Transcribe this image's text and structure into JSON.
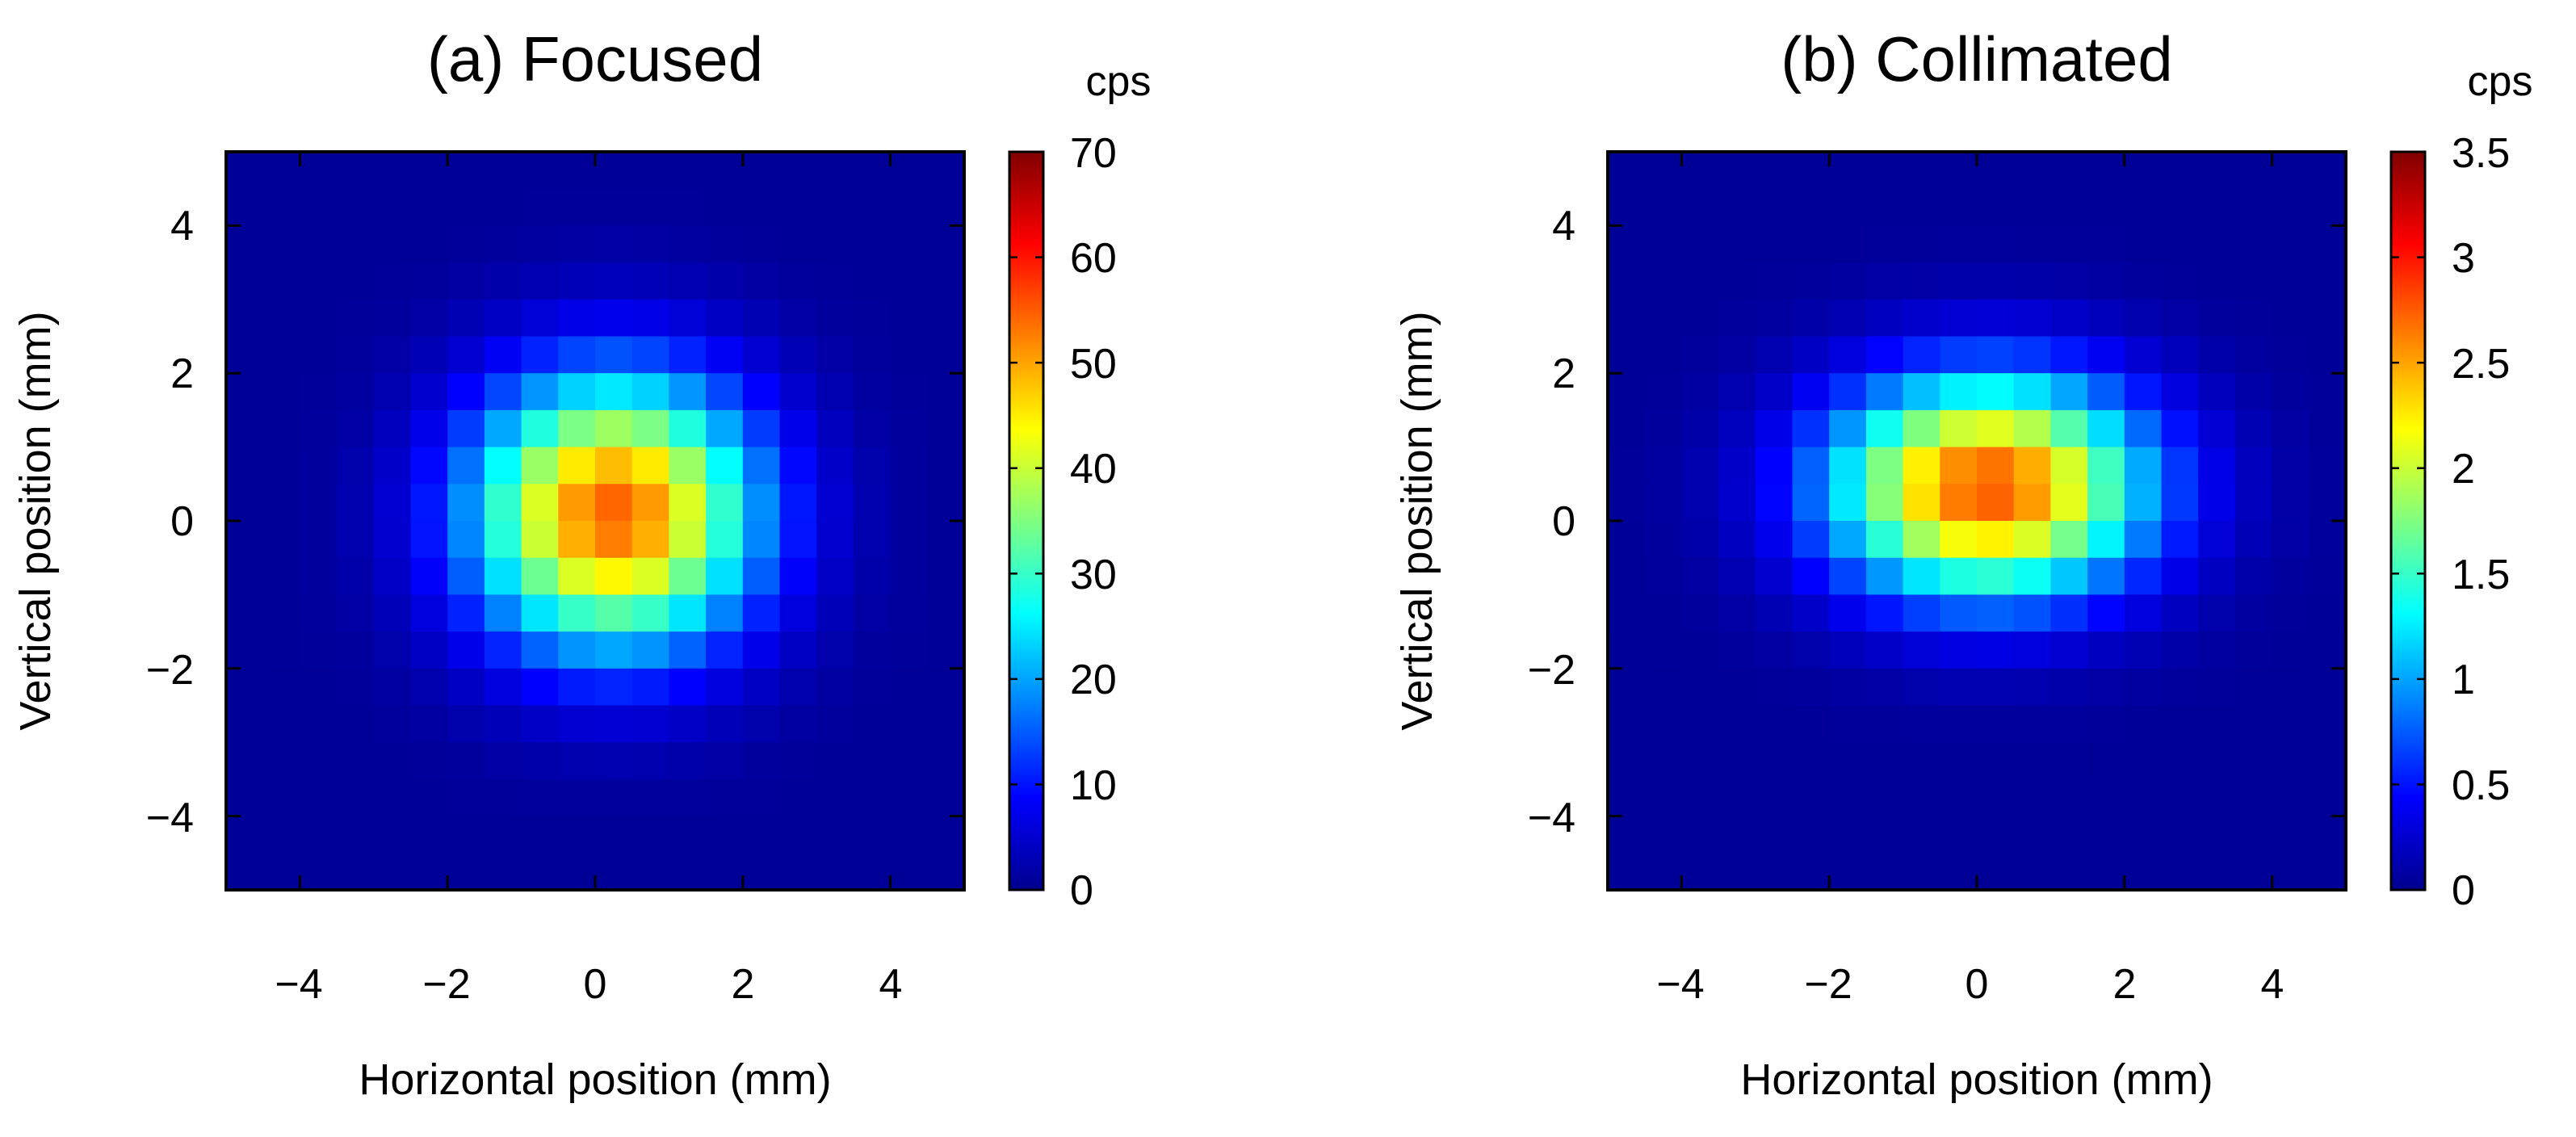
{
  "chart_data": [
    {
      "type": "heatmap",
      "title": "(a) Focused",
      "xlabel": "Horizontal position (mm)",
      "ylabel": "Vertical position (mm)",
      "xlim": [
        -5,
        5
      ],
      "ylim": [
        -5,
        5
      ],
      "grid": false,
      "bins": 20,
      "cell_size_mm": 0.5,
      "center_mm": [
        0.25,
        0.1
      ],
      "sigma_mm": [
        1.35,
        1.3
      ],
      "peak_value": 54,
      "baseline_value": 0.6,
      "xticks": [
        -4,
        -2,
        0,
        2,
        4
      ],
      "yticks": [
        -4,
        -2,
        0,
        2,
        4
      ],
      "xtick_labels": [
        "−4",
        "−2",
        "0",
        "2",
        "4"
      ],
      "ytick_labels": [
        "−4",
        "−2",
        "0",
        "2",
        "4"
      ],
      "colorbar": {
        "label": "cps",
        "range": [
          0,
          70
        ],
        "ticks": [
          0,
          10,
          20,
          30,
          40,
          50,
          60,
          70
        ],
        "tick_labels": [
          "0",
          "10",
          "20",
          "30",
          "40",
          "50",
          "60",
          "70"
        ]
      }
    },
    {
      "type": "heatmap",
      "title": "(b) Collimated",
      "xlabel": "Horizontal position (mm)",
      "ylabel": "Vertical position (mm)",
      "xlim": [
        -5,
        5
      ],
      "ylim": [
        -5,
        5
      ],
      "grid": false,
      "bins": 20,
      "cell_size_mm": 0.5,
      "center_mm": [
        0.15,
        0.45
      ],
      "sigma_mm": [
        1.5,
        1.05
      ],
      "peak_value": 2.75,
      "baseline_value": 0.03,
      "xticks": [
        -4,
        -2,
        0,
        2,
        4
      ],
      "yticks": [
        -4,
        -2,
        0,
        2,
        4
      ],
      "xtick_labels": [
        "−4",
        "−2",
        "0",
        "2",
        "4"
      ],
      "ytick_labels": [
        "−4",
        "−2",
        "0",
        "2",
        "4"
      ],
      "colorbar": {
        "label": "cps",
        "range": [
          0,
          3.5
        ],
        "ticks": [
          0,
          0.5,
          1,
          1.5,
          2,
          2.5,
          3,
          3.5
        ],
        "tick_labels": [
          "0",
          "0.5",
          "1",
          "1.5",
          "2",
          "2.5",
          "3",
          "3.5"
        ]
      }
    }
  ]
}
